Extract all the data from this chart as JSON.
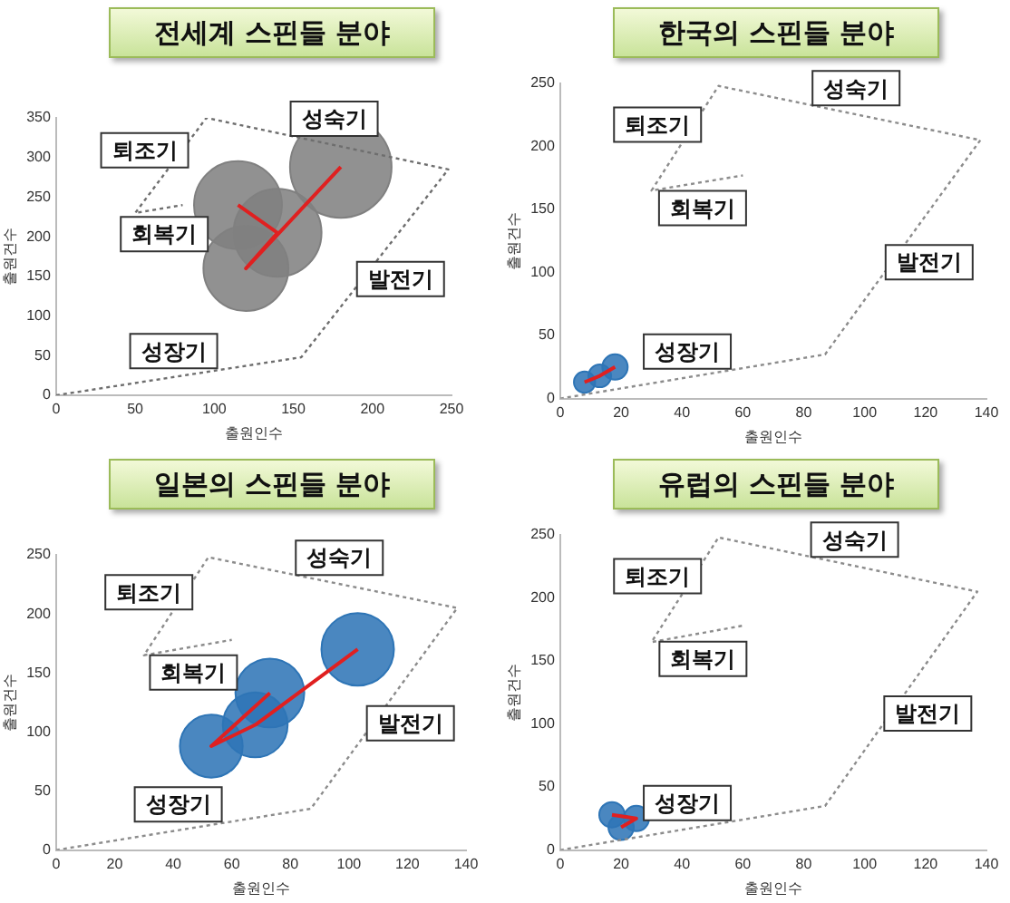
{
  "chart_data": [
    {
      "type": "bubble",
      "title": "전세계 스핀들 분야",
      "xlabel": "출원인수",
      "ylabel": "출원건수",
      "xlim": [
        0,
        250
      ],
      "xticks": [
        0,
        50,
        100,
        150,
        200,
        250
      ],
      "ylim": [
        0,
        350
      ],
      "yticks": [
        0,
        50,
        100,
        150,
        200,
        250,
        300,
        350
      ],
      "grid": false,
      "series": [
        {
          "type": "line",
          "color": "#6e6e6e",
          "line_style": "dotted",
          "marker": "none",
          "x": [
            0,
            155,
            248,
            95,
            50,
            80
          ],
          "values": [
            0,
            48,
            285,
            350,
            230,
            240
          ]
        },
        {
          "type": "bubble",
          "color": "#808080",
          "x": [
            115,
            140,
            120,
            180
          ],
          "values": [
            240,
            205,
            160,
            288
          ],
          "sizes": [
            0.75,
            0.75,
            0.7,
            1
          ]
        },
        {
          "type": "line",
          "color": "#e02020",
          "line_style": "solid",
          "marker": "none",
          "x": [
            115,
            140,
            120,
            180
          ],
          "values": [
            240,
            205,
            160,
            288
          ]
        }
      ],
      "annotations": [
        "성장기",
        "발전기",
        "성숙기",
        "퇴조기",
        "회복기"
      ]
    },
    {
      "type": "bubble",
      "title": "한국의 스핀들 분야",
      "xlabel": "출원인수",
      "ylabel": "출원건수",
      "xlim": [
        0,
        140
      ],
      "xticks": [
        0,
        20,
        40,
        60,
        80,
        100,
        120,
        140
      ],
      "ylim": [
        0,
        250
      ],
      "yticks": [
        0,
        50,
        100,
        150,
        200,
        250
      ],
      "grid": false,
      "series": [
        {
          "type": "line",
          "color": "#8c8c8c",
          "line_style": "dotted",
          "marker": "none",
          "x": [
            0,
            87,
            138,
            52,
            30,
            60
          ],
          "values": [
            0,
            35,
            205,
            248,
            165,
            177
          ]
        },
        {
          "type": "bubble",
          "color": "#2e75b6",
          "x": [
            8,
            13,
            18
          ],
          "values": [
            13,
            18,
            25
          ],
          "sizes": [
            0.7,
            0.8,
            1
          ]
        },
        {
          "type": "line",
          "color": "#e02020",
          "line_style": "solid",
          "marker": "none",
          "x": [
            8,
            13,
            18
          ],
          "values": [
            13,
            18,
            25
          ]
        }
      ],
      "annotations": [
        "성장기",
        "발전기",
        "성숙기",
        "퇴조기",
        "회복기"
      ]
    },
    {
      "type": "bubble",
      "title": "일본의 스핀들 분야",
      "xlabel": "출원인수",
      "ylabel": "출원건수",
      "xlim": [
        0,
        140
      ],
      "xticks": [
        0,
        20,
        40,
        60,
        80,
        100,
        120,
        140
      ],
      "ylim": [
        0,
        250
      ],
      "yticks": [
        0,
        50,
        100,
        150,
        200,
        250
      ],
      "grid": false,
      "series": [
        {
          "type": "line",
          "color": "#8c8c8c",
          "line_style": "dotted",
          "marker": "none",
          "x": [
            0,
            87,
            137,
            52,
            30,
            60
          ],
          "values": [
            0,
            35,
            205,
            248,
            165,
            178
          ]
        },
        {
          "type": "bubble",
          "color": "#2e75b6",
          "x": [
            73,
            53,
            68,
            103
          ],
          "values": [
            133,
            88,
            106,
            170
          ],
          "sizes": [
            0.9,
            0.75,
            0.8,
            1
          ]
        },
        {
          "type": "line",
          "color": "#e02020",
          "line_style": "solid",
          "marker": "none",
          "x": [
            73,
            53,
            68,
            103
          ],
          "values": [
            133,
            88,
            106,
            170
          ]
        }
      ],
      "annotations": [
        "성장기",
        "발전기",
        "성숙기",
        "퇴조기",
        "회복기"
      ]
    },
    {
      "type": "bubble",
      "title": "유럽의 스핀들 분야",
      "xlabel": "출원인수",
      "ylabel": "출원건수",
      "xlim": [
        0,
        140
      ],
      "xticks": [
        0,
        20,
        40,
        60,
        80,
        100,
        120,
        140
      ],
      "ylim": [
        0,
        250
      ],
      "yticks": [
        0,
        50,
        100,
        150,
        200,
        250
      ],
      "grid": false,
      "series": [
        {
          "type": "line",
          "color": "#8c8c8c",
          "line_style": "dotted",
          "marker": "none",
          "x": [
            0,
            87,
            137,
            52,
            30,
            60
          ],
          "values": [
            0,
            35,
            205,
            248,
            165,
            178
          ]
        },
        {
          "type": "bubble",
          "color": "#2e75b6",
          "x": [
            17,
            25,
            20
          ],
          "values": [
            28,
            25,
            18
          ],
          "sizes": [
            1,
            1,
            1
          ]
        },
        {
          "type": "line",
          "color": "#e02020",
          "line_style": "solid",
          "marker": "none",
          "x": [
            17,
            25,
            20
          ],
          "values": [
            28,
            25,
            18
          ]
        }
      ],
      "annotations": [
        "성장기",
        "발전기",
        "성숙기",
        "퇴조기",
        "회복기"
      ]
    }
  ]
}
